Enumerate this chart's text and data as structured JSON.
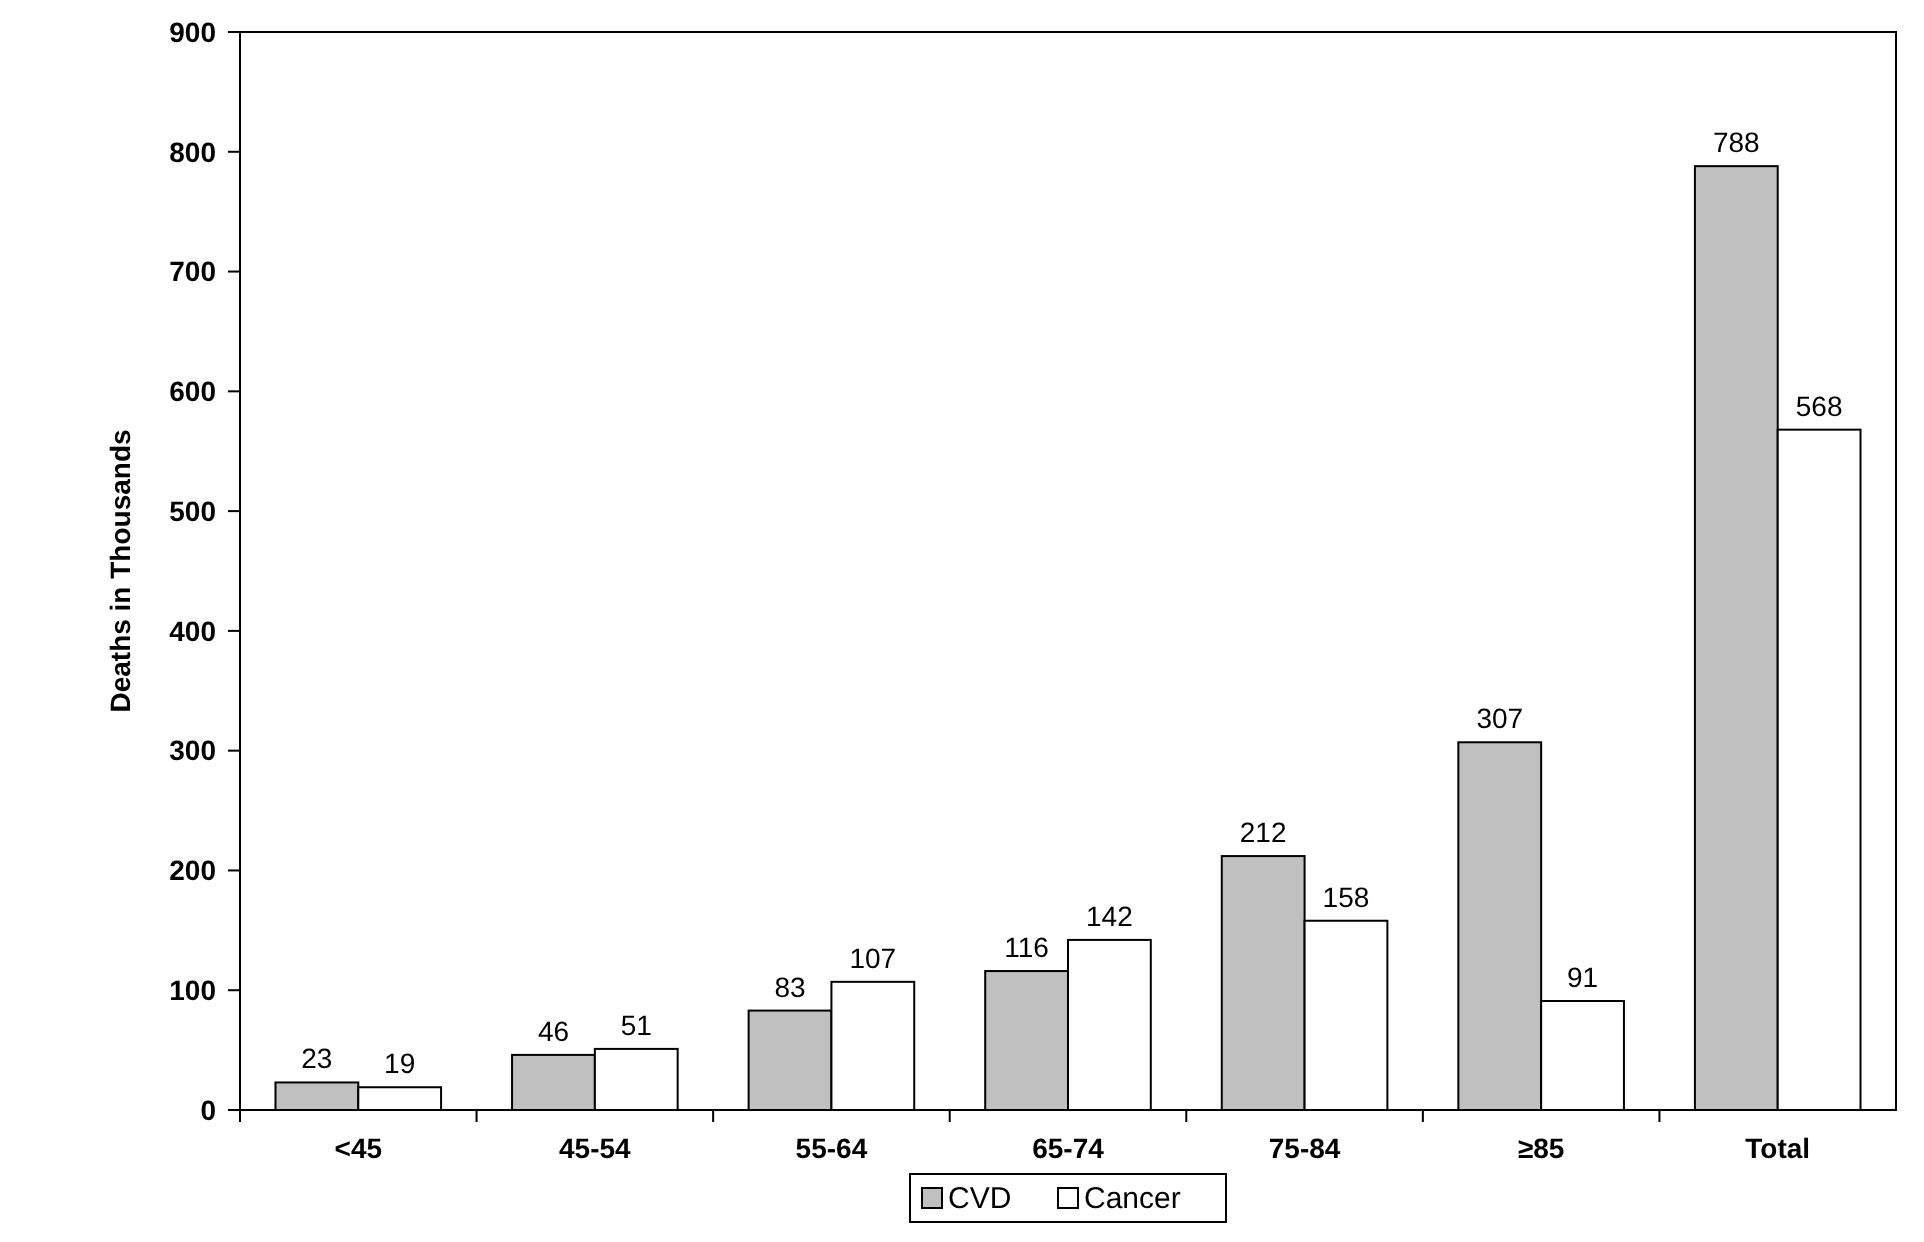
{
  "chart_data": {
    "type": "bar",
    "ylabel": "Deaths in Thousands",
    "categories": [
      "<45",
      "45-54",
      "55-64",
      "65-74",
      "75-84",
      "≥85",
      "Total"
    ],
    "series": [
      {
        "name": "CVD",
        "color": "#c0c0c0",
        "values": [
          23,
          46,
          83,
          116,
          212,
          307,
          788
        ]
      },
      {
        "name": "Cancer",
        "color": "#ffffff",
        "values": [
          19,
          51,
          107,
          142,
          158,
          91,
          568
        ]
      }
    ],
    "ylim": [
      0,
      900
    ],
    "yticks": [
      0,
      100,
      200,
      300,
      400,
      500,
      600,
      700,
      800,
      900
    ],
    "data_labels": true,
    "grid": false,
    "legend": "bottom"
  }
}
